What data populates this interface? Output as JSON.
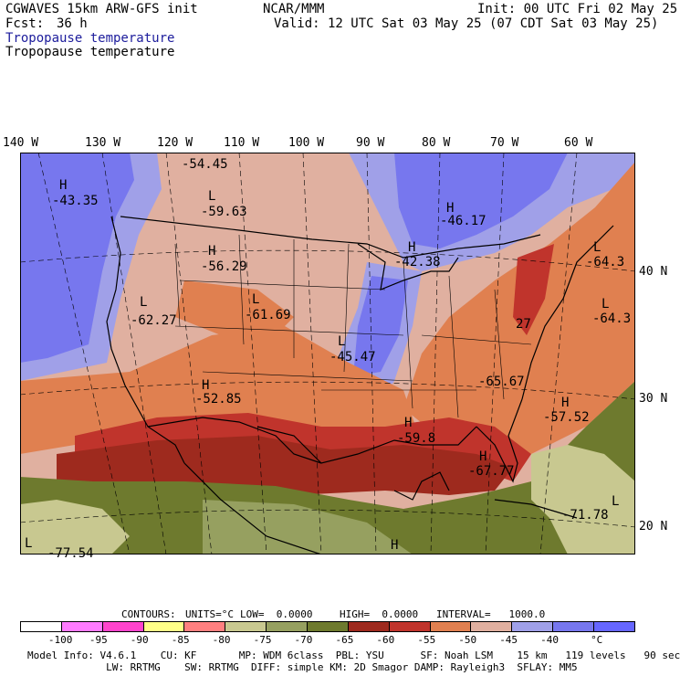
{
  "header": {
    "model": "CGWAVES 15km ARW-GFS init",
    "org": "NCAR/MMM",
    "init": "Init: 00 UTC Fri 02 May 25",
    "fcst_label": "Fcst:",
    "fcst_value": "36 h",
    "valid": "Valid: 12 UTC Sat 03 May 25 (07 CDT Sat 03 May 25)",
    "field_blue": "Tropopause temperature",
    "field_black": "Tropopause temperature"
  },
  "axes": {
    "longitudes": [
      "140 W",
      "130 W",
      "120 W",
      "110 W",
      "100 W",
      "90 W",
      "80 W",
      "70 W",
      "60 W"
    ],
    "latitudes": [
      "40 N",
      "30 N",
      "20 N"
    ]
  },
  "map_labels": [
    {
      "type": "H",
      "value": "-43.35"
    },
    {
      "type": "",
      "value": "-54.45"
    },
    {
      "type": "L",
      "value": "-59.63"
    },
    {
      "type": "H",
      "value": "-46.17"
    },
    {
      "type": "H",
      "value": "-56.29"
    },
    {
      "type": "H",
      "value": "-42.38"
    },
    {
      "type": "L",
      "value": "-64.3"
    },
    {
      "type": "L",
      "value": "-62.27"
    },
    {
      "type": "L",
      "value": "-61.69"
    },
    {
      "type": "L",
      "value": "-64.3"
    },
    {
      "type": "",
      "value": "27"
    },
    {
      "type": "L",
      "value": "-45.47"
    },
    {
      "type": "",
      "value": "-65.67"
    },
    {
      "type": "H",
      "value": "-52.85"
    },
    {
      "type": "H",
      "value": "-57.52"
    },
    {
      "type": "H",
      "value": "-59.8"
    },
    {
      "type": "H",
      "value": "-67.77"
    },
    {
      "type": "L",
      "value": "-71.78"
    },
    {
      "type": "L",
      "value": "-77.54"
    },
    {
      "type": "H",
      "value": ""
    }
  ],
  "contours": {
    "label": "CONTOURS:",
    "units": "UNITS=°C",
    "low": "LOW=  0.0000",
    "high": "HIGH=  0.0000",
    "interval": "INTERVAL=   1000.0"
  },
  "legend": {
    "colors": [
      "#ffffff",
      "#ff7bff",
      "#ff44cc",
      "#ffff88",
      "#ff8080",
      "#c8c890",
      "#96a060",
      "#6e7a2e",
      "#9e2a1e",
      "#c0342c",
      "#e08050",
      "#e0b0a0",
      "#a0a0e8",
      "#7777ee",
      "#6666ff"
    ],
    "ticks": [
      "-100",
      "-95",
      "-90",
      "-85",
      "-80",
      "-75",
      "-70",
      "-65",
      "-60",
      "-55",
      "-50",
      "-45",
      "-40",
      "°C"
    ]
  },
  "footer": {
    "line1": "Model Info: V4.6.1    CU: KF       MP: WDM 6class  PBL: YSU      SF: Noah LSM    15 km   119 levels   90 sec",
    "line2": "             LW: RRTMG    SW: RRTMG  DIFF: simple KM: 2D Smagor DAMP: Rayleigh3  SFLAY: MM5"
  }
}
